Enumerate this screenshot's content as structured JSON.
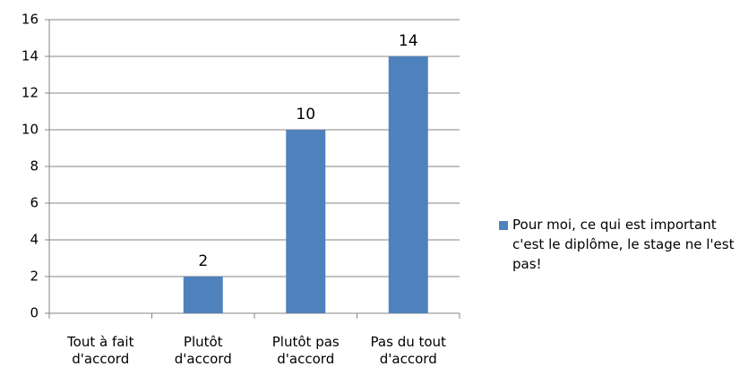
{
  "chart_data": {
    "type": "bar",
    "categories": [
      "Tout à fait d'accord",
      "Plutôt d'accord",
      "Plutôt pas d'accord",
      "Pas du tout d'accord"
    ],
    "series": [
      {
        "name": "Pour moi, ce qui est important c'est le diplôme, le stage ne l'est pas!",
        "color": "#4f81bd",
        "values": [
          0,
          2,
          10,
          14
        ],
        "value_labels": [
          null,
          "2",
          "10",
          "14"
        ]
      }
    ],
    "ylim": [
      0,
      16
    ],
    "yticks": [
      0,
      2,
      4,
      6,
      8,
      10,
      12,
      14,
      16
    ],
    "grid": true,
    "legend": "right"
  }
}
